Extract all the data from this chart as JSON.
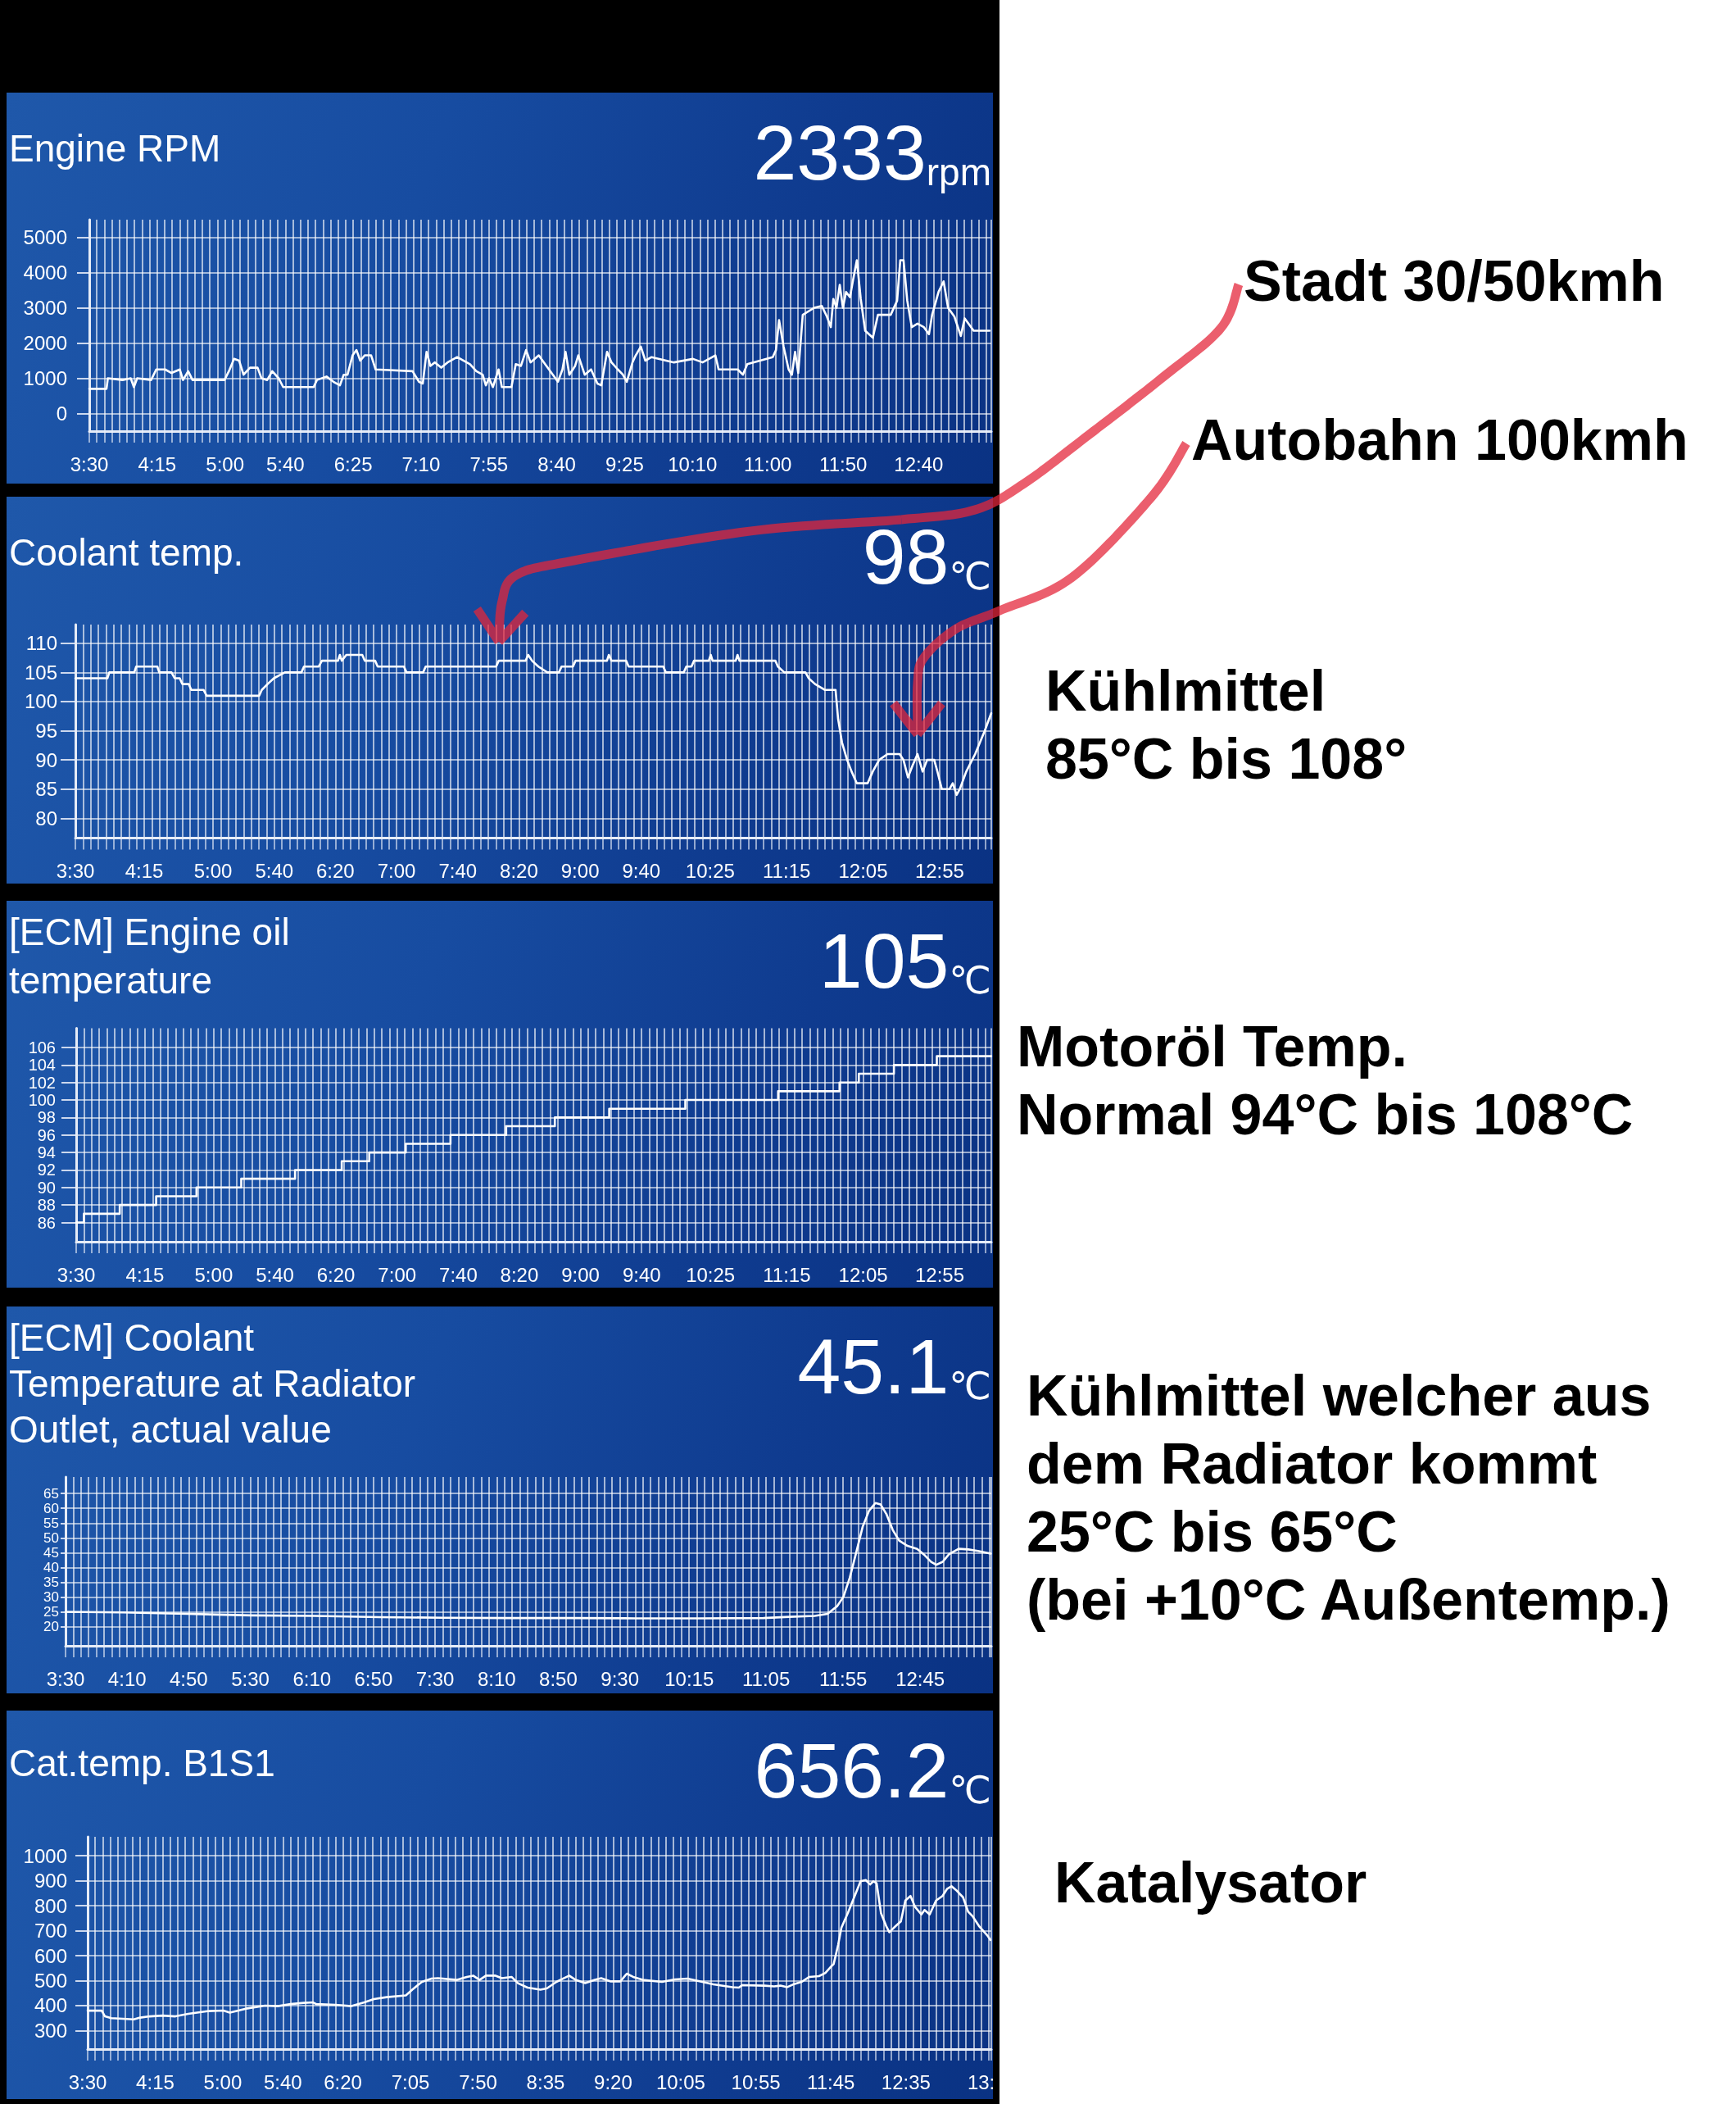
{
  "chart_data": [
    {
      "type": "line",
      "title": "Engine RPM",
      "subtitle": "2333rpm",
      "color": "#ffffff",
      "grid": true,
      "xlim": [
        3.5,
        13.47
      ],
      "xticks": [
        {
          "value": 3.5,
          "label": "3:30"
        },
        {
          "value": 4.25,
          "label": "4:15"
        },
        {
          "value": 5,
          "label": "5:00"
        },
        {
          "value": 5.667,
          "label": "5:40"
        },
        {
          "value": 6.417,
          "label": "6:25"
        },
        {
          "value": 7.167,
          "label": "7:10"
        },
        {
          "value": 7.917,
          "label": "7:55"
        },
        {
          "value": 8.667,
          "label": "8:40"
        },
        {
          "value": 9.417,
          "label": "9:25"
        },
        {
          "value": 10.167,
          "label": "10:10"
        },
        {
          "value": 11,
          "label": "11:00"
        },
        {
          "value": 11.833,
          "label": "11:50"
        },
        {
          "value": 12.667,
          "label": "12:40"
        }
      ],
      "ylim": [
        -500,
        5500
      ],
      "yticks": [
        0,
        1000,
        2000,
        3000,
        4000,
        5000
      ],
      "x": [
        3.5,
        3.69,
        3.705,
        3.867,
        3.958,
        3.993,
        4.029,
        4.183,
        4.24,
        4.338,
        4.409,
        4.5,
        4.536,
        4.593,
        4.641,
        4.994,
        5.043,
        5.1,
        5.156,
        5.205,
        5.276,
        5.36,
        5.403,
        5.466,
        5.522,
        5.593,
        5.643,
        5.98,
        6.016,
        6.122,
        6.199,
        6.27,
        6.312,
        6.354,
        6.41,
        6.453,
        6.495,
        6.544,
        6.615,
        6.665,
        7.073,
        7.144,
        7.186,
        7.228,
        7.27,
        7.32,
        7.39,
        7.46,
        7.566,
        7.708,
        7.778,
        7.848,
        7.883,
        7.918,
        7.961,
        8.024,
        8.06,
        8.166,
        8.214,
        8.271,
        8.328,
        8.377,
        8.468,
        8.553,
        8.624,
        8.68,
        8.73,
        8.764,
        8.806,
        8.87,
        8.905,
        8.976,
        9.046,
        9.117,
        9.159,
        9.223,
        9.272,
        9.342,
        9.398,
        9.441,
        9.504,
        9.54,
        9.596,
        9.646,
        9.715,
        9.962,
        10.173,
        10.279,
        10.42,
        10.456,
        10.667,
        10.724,
        10.773,
        11.054,
        11.09,
        11.124,
        11.174,
        11.23,
        11.266,
        11.301,
        11.336,
        11.386,
        11.513,
        11.597,
        11.653,
        11.696,
        11.724,
        11.759,
        11.795,
        11.83,
        11.865,
        11.908,
        11.943,
        11.984,
        12.027,
        12.076,
        12.161,
        12.217,
        12.358,
        12.429,
        12.464,
        12.5,
        12.541,
        12.591,
        12.654,
        12.725,
        12.781,
        12.816,
        12.887,
        12.943,
        12.992,
        13.062,
        13.133,
        13.176,
        13.275,
        13.451
      ],
      "values": [
        700,
        700,
        1000,
        950,
        1000,
        750,
        1000,
        950,
        1250,
        1250,
        1150,
        1250,
        950,
        1200,
        950,
        950,
        1200,
        1550,
        1500,
        1100,
        1300,
        1300,
        1000,
        950,
        1200,
        1000,
        750,
        750,
        950,
        1050,
        900,
        800,
        1100,
        1100,
        1650,
        1800,
        1500,
        1650,
        1650,
        1250,
        1200,
        900,
        850,
        1750,
        1350,
        1450,
        1300,
        1450,
        1600,
        1400,
        1200,
        1100,
        800,
        1000,
        750,
        1250,
        750,
        750,
        1400,
        1350,
        1800,
        1450,
        1650,
        1350,
        1100,
        900,
        1250,
        1750,
        1100,
        1350,
        1650,
        1100,
        1250,
        850,
        800,
        1750,
        1450,
        1250,
        1100,
        900,
        1450,
        1650,
        1900,
        1500,
        1600,
        1450,
        1550,
        1450,
        1650,
        1250,
        1250,
        1100,
        1400,
        1600,
        1800,
        2650,
        1900,
        1250,
        1100,
        1750,
        1150,
        2800,
        3000,
        3050,
        2750,
        2450,
        3250,
        3000,
        3650,
        3000,
        3450,
        3300,
        3800,
        4350,
        3250,
        2350,
        2150,
        2800,
        2800,
        3200,
        4350,
        4350,
        3200,
        2450,
        2550,
        2450,
        2250,
        2800,
        3450,
        3750,
        3000,
        2750,
        2200,
        2700,
        2350,
        2350
      ]
    },
    {
      "type": "line",
      "title": "Coolant temp.",
      "subtitle": "98℃",
      "color": "#ffffff",
      "grid": true,
      "xlim": [
        3.5,
        13.48
      ],
      "xticks": [
        {
          "value": 3.5,
          "label": "3:30"
        },
        {
          "value": 4.25,
          "label": "4:15"
        },
        {
          "value": 5,
          "label": "5:00"
        },
        {
          "value": 5.667,
          "label": "5:40"
        },
        {
          "value": 6.333,
          "label": "6:20"
        },
        {
          "value": 7,
          "label": "7:00"
        },
        {
          "value": 7.667,
          "label": "7:40"
        },
        {
          "value": 8.333,
          "label": "8:20"
        },
        {
          "value": 9,
          "label": "9:00"
        },
        {
          "value": 9.667,
          "label": "9:40"
        },
        {
          "value": 10.417,
          "label": "10:25"
        },
        {
          "value": 11.25,
          "label": "11:15"
        },
        {
          "value": 12.083,
          "label": "12:05"
        },
        {
          "value": 12.917,
          "label": "12:55"
        }
      ],
      "ylim": [
        76.6,
        113.2
      ],
      "yticks": [
        80,
        85,
        90,
        95,
        100,
        105,
        110
      ],
      "x": [
        3.5,
        3.849,
        3.87,
        4.142,
        4.163,
        4.393,
        4.414,
        4.547,
        4.582,
        4.637,
        4.665,
        4.735,
        4.763,
        4.896,
        4.931,
        5.503,
        5.531,
        5.594,
        5.663,
        5.782,
        5.963,
        5.991,
        6.152,
        6.187,
        6.361,
        6.382,
        6.403,
        6.452,
        6.626,
        6.654,
        6.766,
        6.794,
        7.08,
        7.108,
        7.289,
        7.317,
        8.085,
        8.113,
        8.406,
        8.434,
        8.476,
        8.545,
        8.643,
        8.769,
        8.797,
        8.922,
        8.95,
        9.292,
        9.313,
        9.341,
        9.501,
        9.529,
        9.906,
        9.934,
        10.129,
        10.157,
        10.213,
        10.241,
        10.402,
        10.423,
        10.443,
        10.695,
        10.715,
        10.736,
        11.127,
        11.155,
        11.225,
        11.455,
        11.49,
        11.56,
        11.665,
        11.783,
        11.811,
        11.853,
        11.909,
        11.958,
        12.014,
        12.133,
        12.188,
        12.258,
        12.349,
        12.481,
        12.523,
        12.572,
        12.621,
        12.676,
        12.732,
        12.781,
        12.858,
        12.893,
        12.941,
        13.025,
        13.06,
        13.102,
        13.137,
        13.207,
        13.304,
        13.409,
        13.479
      ],
      "values": [
        104,
        104,
        105,
        105,
        106,
        106,
        105,
        105,
        104,
        104,
        103,
        103,
        102,
        102,
        101,
        101,
        102,
        103,
        104,
        105,
        105,
        106,
        106,
        107,
        107,
        108,
        107,
        108,
        108,
        107,
        107,
        106,
        106,
        105,
        105,
        106,
        106,
        107,
        107,
        108,
        107,
        106,
        105,
        105,
        106,
        106,
        107,
        107,
        108,
        107,
        107,
        106,
        106,
        105,
        105,
        106,
        106,
        107,
        107,
        108,
        107,
        107,
        108,
        107,
        107,
        106,
        105,
        105,
        104,
        103,
        102,
        102,
        97,
        93,
        90,
        88,
        86,
        86,
        88,
        90,
        91,
        91,
        90,
        87,
        89,
        91,
        88,
        90,
        90,
        88,
        85,
        85,
        86,
        84,
        85,
        88,
        91,
        95,
        98
      ],
      "annotations": [
        "Stadt 30/50kmh",
        "Autobahn 100kmh",
        "Kühlmittel\n85°C bis 108°"
      ]
    },
    {
      "type": "step",
      "title": "[ECM] Engine oil\ntemperature",
      "subtitle": "105℃",
      "color": "#ffffff",
      "grid": true,
      "xlim": [
        3.5,
        13.48
      ],
      "xticks": [
        {
          "value": 3.5,
          "label": "3:30"
        },
        {
          "value": 4.25,
          "label": "4:15"
        },
        {
          "value": 5,
          "label": "5:00"
        },
        {
          "value": 5.667,
          "label": "5:40"
        },
        {
          "value": 6.333,
          "label": "6:20"
        },
        {
          "value": 7,
          "label": "7:00"
        },
        {
          "value": 7.667,
          "label": "7:40"
        },
        {
          "value": 8.333,
          "label": "8:20"
        },
        {
          "value": 9,
          "label": "9:00"
        },
        {
          "value": 9.667,
          "label": "9:40"
        },
        {
          "value": 10.417,
          "label": "10:25"
        },
        {
          "value": 11.25,
          "label": "11:15"
        },
        {
          "value": 12.083,
          "label": "12:05"
        },
        {
          "value": 12.917,
          "label": "12:55"
        }
      ],
      "ylim": [
        83.8,
        108.2
      ],
      "yticks": [
        86,
        88,
        90,
        92,
        94,
        96,
        98,
        100,
        102,
        104,
        106
      ],
      "x": [
        3.5,
        3.584,
        3.975,
        4.372,
        4.812,
        5.3,
        5.887,
        6.396,
        6.696,
        7.094,
        7.582,
        8.189,
        8.72,
        9.313,
        10.143,
        11.155,
        11.825,
        12.035,
        12.418,
        12.886,
        13.479
      ],
      "values": [
        86,
        87,
        88,
        89,
        90,
        91,
        92,
        93,
        94,
        95,
        96,
        97,
        98,
        99,
        100,
        101,
        102,
        103,
        104,
        105,
        105
      ],
      "annotations": [
        "Motoröl Temp.\nNormal 94°C bis 108°C"
      ]
    },
    {
      "type": "line",
      "title": "[ECM] Coolant\nTemperature at Radiator\nOutlet, actual value",
      "subtitle": "45.1℃",
      "color": "#ffffff",
      "grid": true,
      "xlim": [
        3.5,
        13.52
      ],
      "xticks": [
        {
          "value": 3.5,
          "label": "3:30"
        },
        {
          "value": 4.167,
          "label": "4:10"
        },
        {
          "value": 4.833,
          "label": "4:50"
        },
        {
          "value": 5.5,
          "label": "5:30"
        },
        {
          "value": 6.167,
          "label": "6:10"
        },
        {
          "value": 6.833,
          "label": "6:50"
        },
        {
          "value": 7.5,
          "label": "7:30"
        },
        {
          "value": 8.167,
          "label": "8:10"
        },
        {
          "value": 8.833,
          "label": "8:50"
        },
        {
          "value": 9.5,
          "label": "9:30"
        },
        {
          "value": 10.25,
          "label": "10:15"
        },
        {
          "value": 11.083,
          "label": "11:05"
        },
        {
          "value": 11.917,
          "label": "11:55"
        },
        {
          "value": 12.75,
          "label": "12:45"
        }
      ],
      "ylim": [
        13.5,
        70.6
      ],
      "yticks": [
        20,
        25,
        30,
        35,
        40,
        45,
        50,
        55,
        60,
        65
      ],
      "x": [
        3.5,
        4.124,
        4.817,
        5.51,
        6.203,
        6.896,
        7.589,
        8.282,
        8.975,
        9.668,
        10.361,
        11.054,
        11.331,
        11.608,
        11.747,
        11.851,
        11.92,
        11.989,
        12.059,
        12.128,
        12.197,
        12.266,
        12.322,
        12.384,
        12.453,
        12.523,
        12.613,
        12.717,
        12.8,
        12.869,
        12.925,
        12.994,
        13.063,
        13.167,
        13.271,
        13.375,
        13.514
      ],
      "values": [
        25,
        24.8,
        24.3,
        23.8,
        23.6,
        23.2,
        23,
        22.9,
        22.9,
        22.8,
        22.8,
        22.9,
        23.3,
        23.6,
        24.3,
        26.9,
        30.1,
        36.6,
        45.2,
        53.8,
        59.2,
        61.8,
        61.3,
        58.1,
        52.7,
        49.1,
        47.3,
        46.3,
        44.1,
        41.9,
        40.9,
        41.9,
        44.5,
        46.3,
        46.1,
        45.6,
        44.7
      ],
      "annotations": [
        "Kühlmittel welcher aus\ndem Radiator kommt\n25°C bis 65°C\n(bei +10°C Außentemp.)"
      ]
    },
    {
      "type": "line",
      "title": "Cat.temp. B1S1",
      "subtitle": "656.2℃",
      "color": "#ffffff",
      "grid": true,
      "xlim": [
        3.5,
        13.53
      ],
      "xticks": [
        {
          "value": 3.5,
          "label": "3:30"
        },
        {
          "value": 4.25,
          "label": "4:15"
        },
        {
          "value": 5,
          "label": "5:00"
        },
        {
          "value": 5.667,
          "label": "5:40"
        },
        {
          "value": 6.333,
          "label": "6:20"
        },
        {
          "value": 7.083,
          "label": "7:05"
        },
        {
          "value": 7.833,
          "label": "7:50"
        },
        {
          "value": 8.583,
          "label": "8:35"
        },
        {
          "value": 9.333,
          "label": "9:20"
        },
        {
          "value": 10.083,
          "label": "10:05"
        },
        {
          "value": 10.917,
          "label": "10:55"
        },
        {
          "value": 11.75,
          "label": "11:45"
        },
        {
          "value": 12.583,
          "label": "12:35"
        },
        {
          "value": 13.417,
          "label": "13:"
        }
      ],
      "ylim": [
        226,
        1076
      ],
      "yticks": [
        300,
        400,
        500,
        600,
        700,
        800,
        900,
        1000
      ],
      "x": [
        3.5,
        3.656,
        3.692,
        3.763,
        4.012,
        4.083,
        4.189,
        4.332,
        4.474,
        4.616,
        4.829,
        5.007,
        5.078,
        5.256,
        5.469,
        5.611,
        5.753,
        5.895,
        6.002,
        6.037,
        6.251,
        6.428,
        6.57,
        6.677,
        6.819,
        7.032,
        7.103,
        7.21,
        7.317,
        7.388,
        7.601,
        7.708,
        7.779,
        7.85,
        7.921,
        8.027,
        8.098,
        8.205,
        8.276,
        8.383,
        8.525,
        8.596,
        8.703,
        8.774,
        8.845,
        8.916,
        9.022,
        9.129,
        9.2,
        9.307,
        9.413,
        9.484,
        9.555,
        9.662,
        9.875,
        10.017,
        10.159,
        10.302,
        10.444,
        10.657,
        10.728,
        10.764,
        11.013,
        11.119,
        11.19,
        11.265,
        11.332,
        11.425,
        11.51,
        11.617,
        11.688,
        11.745,
        11.78,
        11.83,
        11.866,
        11.937,
        12.008,
        12.079,
        12.136,
        12.185,
        12.221,
        12.257,
        12.306,
        12.363,
        12.398,
        12.47,
        12.526,
        12.576,
        12.633,
        12.683,
        12.754,
        12.789,
        12.846,
        12.917,
        12.988,
        13.038,
        13.088,
        13.147,
        13.216,
        13.273,
        13.322,
        13.393,
        13.486,
        13.52
      ],
      "values": [
        380,
        380,
        357,
        350,
        345,
        352,
        357,
        360,
        357,
        367,
        378,
        380,
        372,
        388,
        400,
        398,
        406,
        411,
        413,
        406,
        403,
        398,
        413,
        426,
        434,
        441,
        464,
        495,
        508,
        510,
        503,
        515,
        520,
        503,
        520,
        520,
        510,
        515,
        490,
        472,
        464,
        469,
        495,
        508,
        520,
        503,
        490,
        503,
        510,
        497,
        497,
        528,
        515,
        503,
        495,
        505,
        508,
        497,
        485,
        474,
        472,
        482,
        480,
        477,
        480,
        474,
        485,
        495,
        515,
        518,
        531,
        554,
        566,
        643,
        712,
        770,
        834,
        898,
        903,
        885,
        898,
        890,
        770,
        719,
        694,
        719,
        737,
        821,
        839,
        796,
        765,
        783,
        765,
        821,
        839,
        867,
        878,
        860,
        834,
        776,
        758,
        719,
        681,
        663
      ],
      "annotations": [
        "Katalysator"
      ]
    }
  ]
}
